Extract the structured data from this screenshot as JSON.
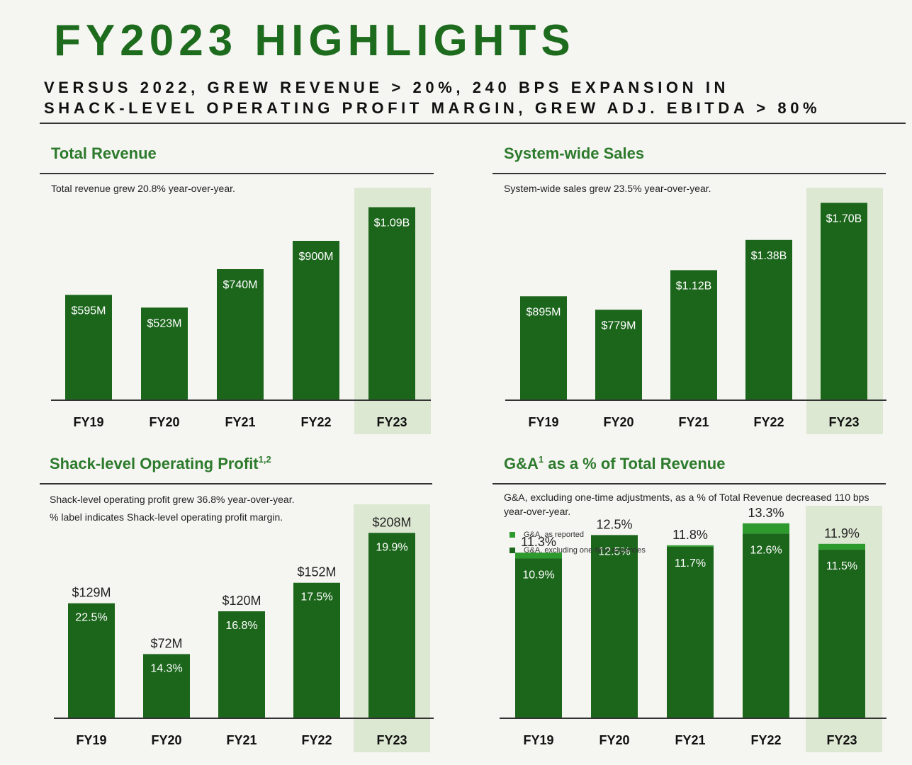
{
  "header": {
    "title": "FY2023 HIGHLIGHTS",
    "subtitle_line1": "VERSUS 2022, GREW REVENUE > 20%, 240 BPS EXPANSION IN",
    "subtitle_line2": "SHACK-LEVEL OPERATING PROFIT MARGIN, GREW ADJ. EBITDA > 80%"
  },
  "colors": {
    "bar": "#1c661c",
    "bar_accent": "#2e9a2e",
    "highlight_bg": "#dde8d2",
    "title_green": "#1d6b1d"
  },
  "panels": {
    "revenue": {
      "title": "Total Revenue",
      "description": "Total revenue grew 20.8% year-over-year."
    },
    "sales": {
      "title": "System-wide Sales",
      "description": "System-wide sales grew 23.5% year-over-year."
    },
    "profit": {
      "title": "Shack-level Operating Profit",
      "title_sup": "1,2",
      "description_line1": "Shack-level operating profit grew 36.8% year-over-year.",
      "description_line2": "% label indicates Shack-level operating profit margin."
    },
    "ga": {
      "title_prefix": "G&A",
      "title_sup": "1",
      "title_suffix": " as a % of Total Revenue",
      "description": "G&A, excluding one-time adjustments, as a % of Total Revenue decreased 110 bps year-over-year.",
      "legend_reported": "G&A, as reported",
      "legend_excluding": "G&A, excluding one-time expenses"
    }
  },
  "chart_data": [
    {
      "id": "revenue",
      "type": "bar",
      "title": "Total Revenue",
      "categories": [
        "FY19",
        "FY20",
        "FY21",
        "FY22",
        "FY23"
      ],
      "values": [
        595,
        523,
        740,
        900,
        1090
      ],
      "labels": [
        "$595M",
        "$523M",
        "$740M",
        "$900M",
        "$1.09B"
      ],
      "unit": "$M",
      "highlight_category": "FY23",
      "ylim": [
        0,
        1200
      ],
      "grid": false
    },
    {
      "id": "sales",
      "type": "bar",
      "title": "System-wide Sales",
      "categories": [
        "FY19",
        "FY20",
        "FY21",
        "FY22",
        "FY23"
      ],
      "values": [
        895,
        779,
        1120,
        1380,
        1700
      ],
      "labels": [
        "$895M",
        "$779M",
        "$1.12B",
        "$1.38B",
        "$1.70B"
      ],
      "unit": "$M",
      "highlight_category": "FY23",
      "ylim": [
        0,
        1830
      ],
      "grid": false
    },
    {
      "id": "profit",
      "type": "bar",
      "title": "Shack-level Operating Profit",
      "categories": [
        "FY19",
        "FY20",
        "FY21",
        "FY22",
        "FY23"
      ],
      "values": [
        129,
        72,
        120,
        152,
        208
      ],
      "labels": [
        "$129M",
        "$72M",
        "$120M",
        "$152M",
        "$208M"
      ],
      "margins": [
        "22.5%",
        "14.3%",
        "16.8%",
        "17.5%",
        "19.9%"
      ],
      "unit": "$M",
      "highlight_category": "FY23",
      "ylim": [
        0,
        240
      ],
      "grid": false
    },
    {
      "id": "ga",
      "type": "bar",
      "title": "G&A as a % of Total Revenue",
      "categories": [
        "FY19",
        "FY20",
        "FY21",
        "FY22",
        "FY23"
      ],
      "series": [
        {
          "name": "G&A, as reported",
          "values": [
            11.3,
            12.5,
            11.8,
            13.3,
            11.9
          ],
          "labels": [
            "11.3%",
            "12.5%",
            "11.8%",
            "13.3%",
            "11.9%"
          ]
        },
        {
          "name": "G&A, excluding one-time expenses",
          "values": [
            10.9,
            12.5,
            11.7,
            12.6,
            11.5
          ],
          "labels": [
            "10.9%",
            "12.5%",
            "11.7%",
            "12.6%",
            "11.5%"
          ]
        }
      ],
      "unit": "%",
      "highlight_category": "FY23",
      "ylim": [
        0,
        14.5
      ],
      "legend": "top-left",
      "grid": false
    }
  ]
}
